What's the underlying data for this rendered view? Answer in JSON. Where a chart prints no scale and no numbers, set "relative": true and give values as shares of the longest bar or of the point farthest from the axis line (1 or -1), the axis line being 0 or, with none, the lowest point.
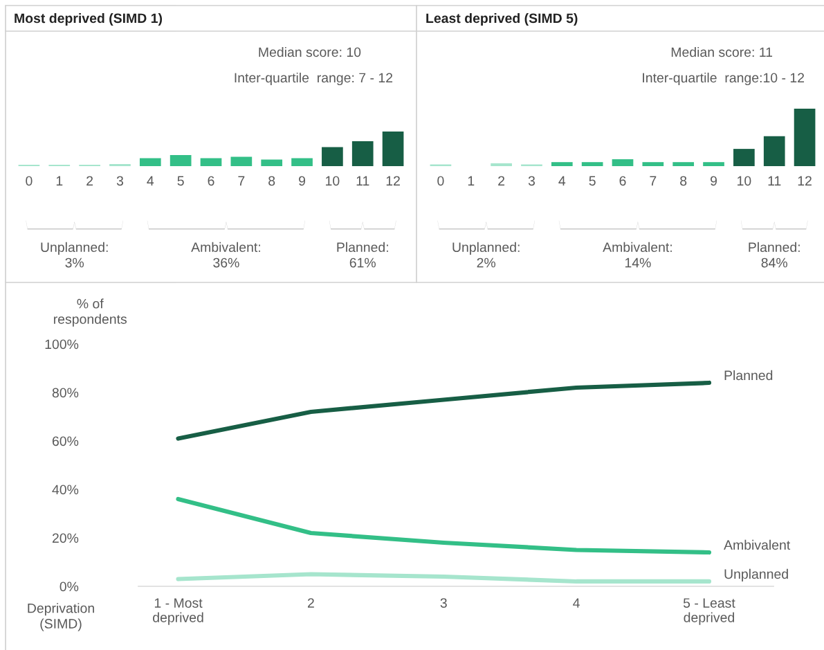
{
  "chart_data": [
    {
      "type": "bar",
      "title": "Most deprived (SIMD 1)",
      "relative": true,
      "categories": [
        "0",
        "1",
        "2",
        "3",
        "4",
        "5",
        "6",
        "7",
        "8",
        "9",
        "10",
        "11",
        "12"
      ],
      "values": [
        0.04,
        0.04,
        0.04,
        0.06,
        0.23,
        0.32,
        0.23,
        0.27,
        0.19,
        0.23,
        0.55,
        0.72,
        1
      ],
      "colors": [
        "#a6e5cd",
        "#a6e5cd",
        "#a6e5cd",
        "#a6e5cd",
        "#33bf87",
        "#33bf87",
        "#33bf87",
        "#33bf87",
        "#33bf87",
        "#33bf87",
        "#175e45",
        "#175e45",
        "#175e45"
      ],
      "annotations": [
        "Median score: 10",
        "Inter-quartile  range: 7 - 12",
        "Unplanned:\n3%",
        "Ambivalent:\n36%",
        "Planned:\n61%"
      ]
    },
    {
      "type": "bar",
      "title": "Least deprived (SIMD 5)",
      "relative": true,
      "categories": [
        "0",
        "1",
        "2",
        "3",
        "4",
        "5",
        "6",
        "7",
        "8",
        "9",
        "10",
        "11",
        "12"
      ],
      "values": [
        0.03,
        0,
        0.05,
        0.03,
        0.07,
        0.07,
        0.12,
        0.07,
        0.07,
        0.07,
        0.3,
        0.52,
        1
      ],
      "colors": [
        "#a6e5cd",
        "#a6e5cd",
        "#a6e5cd",
        "#a6e5cd",
        "#33bf87",
        "#33bf87",
        "#33bf87",
        "#33bf87",
        "#33bf87",
        "#33bf87",
        "#175e45",
        "#175e45",
        "#175e45"
      ],
      "annotations": [
        "Median score: 11",
        "Inter-quartile  range:10 - 12",
        "Unplanned:\n2%",
        "Ambivalent:\n14%",
        "Planned:\n84%"
      ]
    },
    {
      "type": "line",
      "ylabel": "% of\nrespondents",
      "xlabel": "Deprivation\n(SIMD)",
      "categories": [
        "1 - Most\ndeprived",
        "2",
        "3",
        "4",
        "5 - Least\ndeprived"
      ],
      "series": [
        {
          "name": "Planned",
          "color": "#175e45",
          "values": [
            61,
            72,
            77,
            82,
            84
          ]
        },
        {
          "name": "Ambivalent",
          "color": "#33bf87",
          "values": [
            36,
            22,
            18,
            15,
            14
          ]
        },
        {
          "name": "Unplanned",
          "color": "#a6e5cd",
          "values": [
            3,
            5,
            4,
            2,
            2
          ]
        }
      ],
      "ylim": [
        0,
        100
      ],
      "yticks": [
        {
          "value": 0,
          "label": "0%"
        },
        {
          "value": 20,
          "label": "20%"
        },
        {
          "value": 40,
          "label": "40%"
        },
        {
          "value": 60,
          "label": "60%"
        },
        {
          "value": 80,
          "label": "80%"
        },
        {
          "value": 100,
          "label": "100%"
        }
      ]
    }
  ]
}
